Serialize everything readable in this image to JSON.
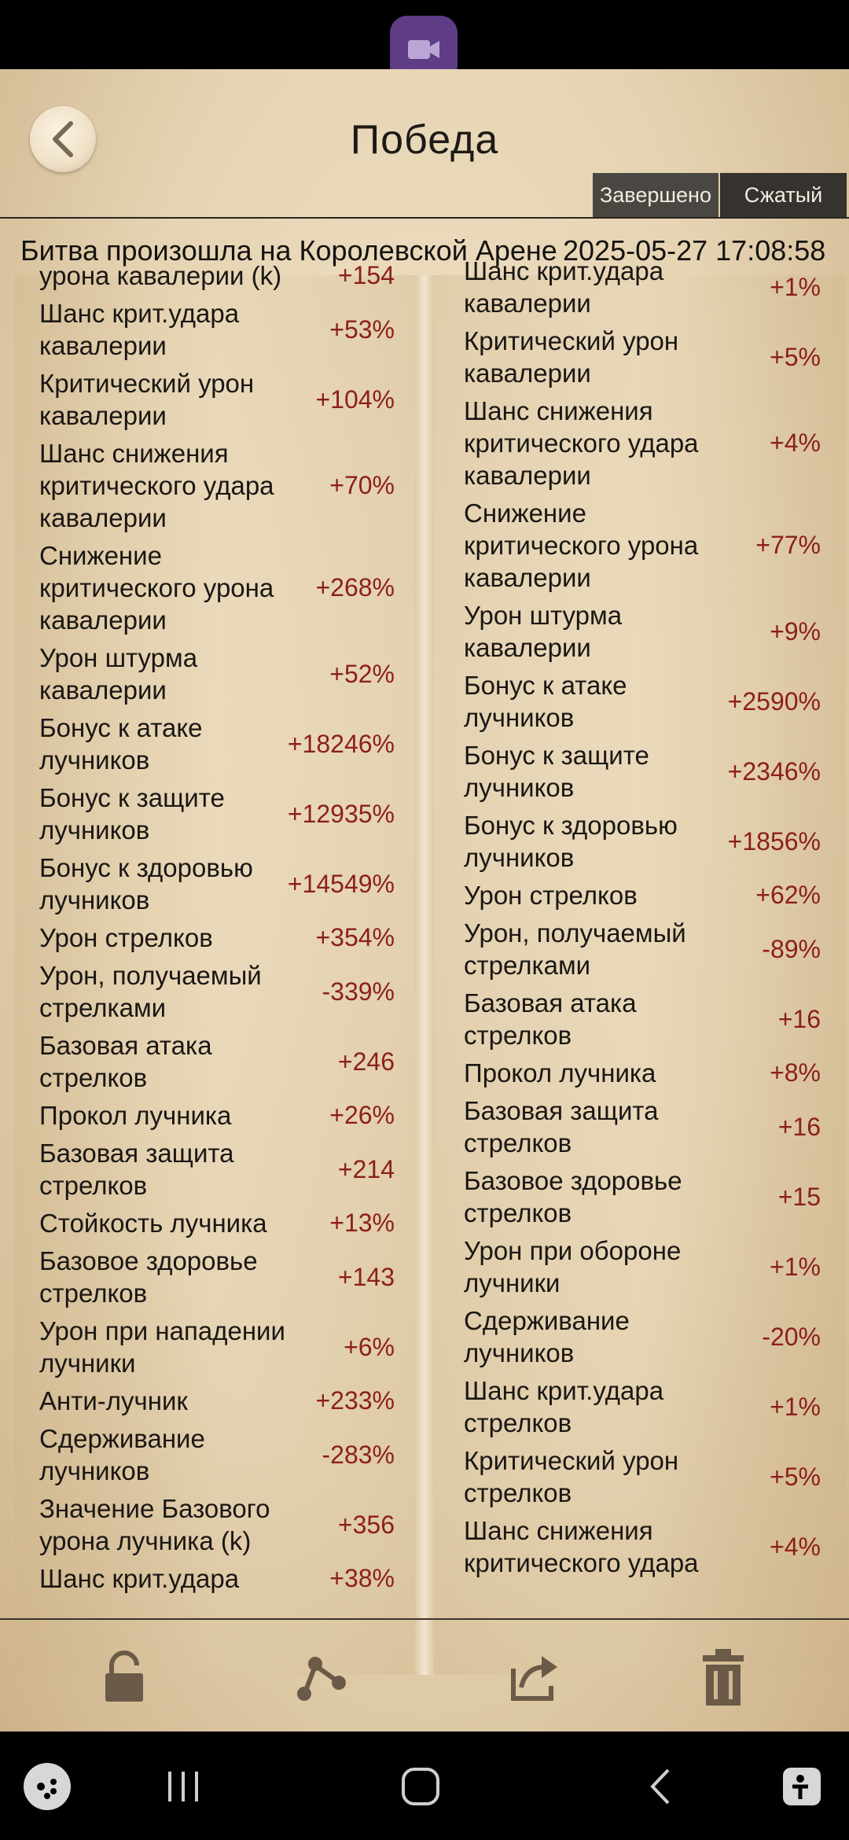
{
  "header": {
    "title": "Победа",
    "tabs": [
      {
        "label": "Завершено"
      },
      {
        "label": "Сжатый"
      }
    ]
  },
  "battle": {
    "location": "Битва произошла на Королевской Арене",
    "datetime": "2025-05-27  17:08:58"
  },
  "left_column": [
    {
      "name": "урона кавалерии (k)",
      "value": "+154"
    },
    {
      "name": "Шанс крит.удара\nкавалерии",
      "value": "+53%"
    },
    {
      "name": "Критический урон\nкавалерии",
      "value": "+104%"
    },
    {
      "name": "Шанс снижения\nкритического удара\nкавалерии",
      "value": "+70%"
    },
    {
      "name": "Снижение\nкритического урона\nкавалерии",
      "value": "+268%"
    },
    {
      "name": "Урон штурма\nкавалерии",
      "value": "+52%"
    },
    {
      "name": "Бонус к атаке\nлучников",
      "value": "+18246%"
    },
    {
      "name": "Бонус к защите\nлучников",
      "value": "+12935%"
    },
    {
      "name": "Бонус к здоровью\nлучников",
      "value": "+14549%"
    },
    {
      "name": "Урон стрелков",
      "value": "+354%"
    },
    {
      "name": "Урон, получаемый\nстрелками",
      "value": "-339%"
    },
    {
      "name": "Базовая атака\nстрелков",
      "value": "+246"
    },
    {
      "name": "Прокол лучника",
      "value": "+26%"
    },
    {
      "name": "Базовая защита\nстрелков",
      "value": "+214"
    },
    {
      "name": "Стойкость лучника",
      "value": "+13%"
    },
    {
      "name": "Базовое здоровье\nстрелков",
      "value": "+143"
    },
    {
      "name": "Урон при нападении\nлучники",
      "value": "+6%"
    },
    {
      "name": "Анти-лучник",
      "value": "+233%"
    },
    {
      "name": "Сдерживание\nлучников",
      "value": "-283%"
    },
    {
      "name": "Значение Базового\nурона лучника (k)",
      "value": "+356"
    },
    {
      "name": "Шанс крит.удара",
      "value": "+38%"
    }
  ],
  "right_column": [
    {
      "name": "Шанс крит.удара\nкавалерии",
      "value": "+1%"
    },
    {
      "name": "Критический урон\nкавалерии",
      "value": "+5%"
    },
    {
      "name": "Шанс снижения\nкритического удара\nкавалерии",
      "value": "+4%"
    },
    {
      "name": "Снижение\nкритического урона\nкавалерии",
      "value": "+77%"
    },
    {
      "name": "Урон штурма\nкавалерии",
      "value": "+9%"
    },
    {
      "name": "Бонус к атаке\nлучников",
      "value": "+2590%"
    },
    {
      "name": "Бонус к защите\nлучников",
      "value": "+2346%"
    },
    {
      "name": "Бонус к здоровью\nлучников",
      "value": "+1856%"
    },
    {
      "name": "Урон стрелков",
      "value": "+62%"
    },
    {
      "name": "Урон, получаемый\nстрелками",
      "value": "-89%"
    },
    {
      "name": "Базовая атака\nстрелков",
      "value": "+16"
    },
    {
      "name": "Прокол лучника",
      "value": "+8%"
    },
    {
      "name": "Базовая защита\nстрелков",
      "value": "+16"
    },
    {
      "name": "Базовое здоровье\nстрелков",
      "value": "+15"
    },
    {
      "name": "Урон при обороне\nлучники",
      "value": "+1%"
    },
    {
      "name": "Сдерживание\nлучников",
      "value": "-20%"
    },
    {
      "name": "Шанс крит.удара\nстрелков",
      "value": "+1%"
    },
    {
      "name": "Критический урон\nстрелков",
      "value": "+5%"
    },
    {
      "name": "Шанс снижения\nкритического удара",
      "value": "+4%"
    }
  ],
  "icons": {
    "camera": "video-camera-icon",
    "back": "chevron-left-icon",
    "lock": "lock-icon",
    "share": "share-icon",
    "export": "export-icon",
    "delete": "trash-icon",
    "game": "gamepad-icon",
    "recents": "recent-apps-icon",
    "home": "home-icon",
    "nav_back": "nav-back-icon",
    "accessibility": "accessibility-icon"
  },
  "colors": {
    "value_text": "#8c1f1a",
    "tab_bg": "#3d3a36",
    "paper": "#e6d4b3"
  }
}
